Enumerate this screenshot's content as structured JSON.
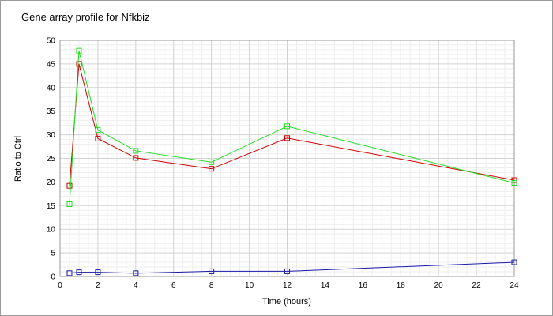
{
  "chart_data": {
    "type": "line",
    "title": "Gene array profile for Nfkbiz",
    "xlabel": "Time (hours)",
    "ylabel": "Ratio to Ctrl",
    "xlim": [
      0,
      24
    ],
    "ylim": [
      0,
      50
    ],
    "x_ticks": [
      0,
      2,
      4,
      6,
      8,
      10,
      12,
      14,
      16,
      18,
      20,
      22,
      24
    ],
    "y_ticks": [
      0,
      5,
      10,
      15,
      20,
      25,
      30,
      35,
      40,
      45,
      50
    ],
    "grid": true,
    "marker": "square",
    "series": [
      {
        "color": "#cc0000",
        "x": [
          0.5,
          1,
          2,
          4,
          8,
          12,
          24
        ],
        "y": [
          19.2,
          45.0,
          29.2,
          25.1,
          22.8,
          29.3,
          20.4
        ]
      },
      {
        "color": "#22dd22",
        "x": [
          0.5,
          1,
          2,
          4,
          8,
          12,
          24
        ],
        "y": [
          15.3,
          47.8,
          31.0,
          26.6,
          24.2,
          31.8,
          19.8
        ]
      },
      {
        "color": "#1a1aa8",
        "x": [
          0.5,
          1,
          2,
          4,
          8,
          12,
          24
        ],
        "y": [
          0.7,
          0.9,
          0.9,
          0.7,
          1.1,
          1.1,
          3.0
        ]
      }
    ]
  }
}
